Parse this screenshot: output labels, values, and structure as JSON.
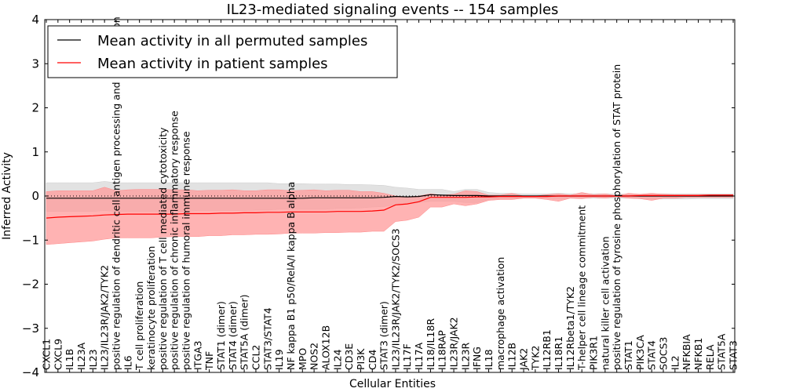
{
  "chart_data": {
    "type": "line",
    "title": "IL23-mediated signaling events -- 154 samples",
    "xlabel": "Cellular Entities",
    "ylabel": "Inferred Activity",
    "ylim": [
      -4,
      4
    ],
    "yticks": [
      -4,
      -3,
      -2,
      -1,
      0,
      1,
      2,
      3,
      4
    ],
    "ytick_labels": [
      "−4",
      "−3",
      "−2",
      "−1",
      "0",
      "1",
      "2",
      "3",
      "4"
    ],
    "grid": false,
    "legend": {
      "placement": "top-left",
      "entries": [
        {
          "label": "Mean activity in all permuted samples",
          "color": "#000000"
        },
        {
          "label": "Mean activity in patient samples",
          "color": "#ff0000"
        }
      ]
    },
    "categories": [
      "CXCL1",
      "CXCL9",
      "IL1B",
      "IL23A",
      "IL23",
      "IL23/IL23R/JAK2/TYK2",
      "positive regulation of dendritic cell antigen processing and presentation",
      "IL6",
      "T cell proliferation",
      "keratinocyte proliferation",
      "positive regulation of T cell mediated cytotoxicity",
      "positive regulation of chronic inflammatory response",
      "positive regulation of humoral immune response",
      "ITGA3",
      "TNF",
      "STAT1 (dimer)",
      "STAT4 (dimer)",
      "STAT5A (dimer)",
      "CCL2",
      "STAT3/STAT4",
      "IL19",
      "NF kappa B1 p50/RelA/I kappa B alpha",
      "MPO",
      "NOS2",
      "ALOX12B",
      "IL24",
      "CD3E",
      "PI3K",
      "CD4",
      "STAT3 (dimer)",
      "IL23/IL23R/JAK2/TYK2/SOCS3",
      "IL17F",
      "IL17A",
      "IL18/IL18R",
      "IL18RAP",
      "IL23R/JAK2",
      "IL23R",
      "IFNG",
      "IL18",
      "macrophage activation",
      "IL12B",
      "JAK2",
      "TYK2",
      "IL12RB1",
      "IL18R1",
      "IL12Rbeta1/TYK2",
      "T-helper cell lineage commitment",
      "PIK3R1",
      "natural killer cell activation",
      "positive regulation of tyrosine phosphorylation of STAT protein",
      "STAT1",
      "PIK3CA",
      "STAT4",
      "SOCS3",
      "IL2",
      "NFKBIA",
      "NFKB1",
      "RELA",
      "STAT5A",
      "STAT3"
    ],
    "series": [
      {
        "name": "Mean activity in all permuted samples",
        "color": "#000000",
        "values": [
          -0.05,
          -0.05,
          -0.05,
          -0.05,
          -0.05,
          -0.05,
          -0.05,
          -0.05,
          -0.05,
          -0.05,
          -0.05,
          -0.05,
          -0.05,
          -0.05,
          -0.05,
          -0.05,
          -0.05,
          -0.05,
          -0.05,
          -0.05,
          -0.05,
          -0.05,
          -0.05,
          -0.04,
          -0.04,
          -0.04,
          -0.04,
          -0.04,
          -0.04,
          -0.03,
          -0.01,
          -0.02,
          -0.01,
          0.03,
          0.02,
          0.01,
          0.01,
          0.01,
          0.0,
          0.0,
          0.0,
          0.0,
          0.0,
          0.0,
          0.0,
          0.0,
          0.0,
          0.0,
          0.0,
          0.0,
          0.0,
          0.0,
          0.0,
          0.0,
          0.0,
          0.0,
          0.0,
          0.0,
          0.0,
          0.0
        ],
        "band_upper": [
          0.3,
          0.3,
          0.3,
          0.3,
          0.3,
          0.33,
          0.3,
          0.3,
          0.3,
          0.3,
          0.3,
          0.3,
          0.3,
          0.3,
          0.3,
          0.3,
          0.3,
          0.3,
          0.3,
          0.3,
          0.28,
          0.28,
          0.28,
          0.27,
          0.27,
          0.27,
          0.26,
          0.26,
          0.25,
          0.24,
          0.2,
          0.18,
          0.15,
          0.15,
          0.15,
          0.1,
          0.15,
          0.15,
          0.08,
          0.06,
          0.06,
          0.05,
          0.05,
          0.05,
          0.06,
          0.05,
          0.05,
          0.05,
          0.05,
          0.05,
          0.04,
          0.04,
          0.05,
          0.05,
          0.05,
          0.05,
          0.05,
          0.05,
          0.05,
          0.05
        ],
        "band_lower": [
          -0.35,
          -0.35,
          -0.35,
          -0.35,
          -0.35,
          -0.33,
          -0.35,
          -0.35,
          -0.35,
          -0.35,
          -0.35,
          -0.35,
          -0.35,
          -0.33,
          -0.33,
          -0.33,
          -0.33,
          -0.33,
          -0.32,
          -0.32,
          -0.3,
          -0.3,
          -0.3,
          -0.3,
          -0.3,
          -0.28,
          -0.28,
          -0.27,
          -0.25,
          -0.24,
          -0.2,
          -0.18,
          -0.15,
          -0.12,
          -0.12,
          -0.12,
          -0.15,
          -0.15,
          -0.08,
          -0.06,
          -0.06,
          -0.05,
          -0.05,
          -0.05,
          -0.06,
          -0.05,
          -0.05,
          -0.05,
          -0.05,
          -0.05,
          -0.05,
          -0.06,
          -0.07,
          -0.07,
          -0.07,
          -0.07,
          -0.06,
          -0.06,
          -0.06,
          -0.06
        ]
      },
      {
        "name": "Mean activity in patient samples",
        "color": "#ff0000",
        "values": [
          -0.5,
          -0.48,
          -0.47,
          -0.46,
          -0.45,
          -0.43,
          -0.42,
          -0.41,
          -0.41,
          -0.41,
          -0.41,
          -0.41,
          -0.4,
          -0.4,
          -0.4,
          -0.39,
          -0.39,
          -0.38,
          -0.38,
          -0.37,
          -0.37,
          -0.36,
          -0.36,
          -0.36,
          -0.36,
          -0.35,
          -0.35,
          -0.35,
          -0.34,
          -0.32,
          -0.2,
          -0.18,
          -0.13,
          -0.03,
          -0.03,
          -0.03,
          -0.03,
          -0.02,
          -0.02,
          -0.01,
          -0.01,
          -0.01,
          -0.01,
          -0.01,
          0.0,
          0.0,
          0.0,
          0.0,
          0.0,
          0.0,
          0.0,
          0.01,
          0.01,
          0.01,
          0.01,
          0.01,
          0.01,
          0.02,
          0.02,
          0.02
        ],
        "band_upper": [
          0.1,
          0.12,
          0.12,
          0.12,
          0.12,
          0.2,
          0.12,
          0.14,
          0.15,
          0.15,
          0.15,
          0.14,
          0.14,
          0.12,
          0.13,
          0.13,
          0.14,
          0.12,
          0.12,
          0.14,
          0.14,
          0.12,
          0.13,
          0.14,
          0.12,
          0.13,
          0.13,
          0.1,
          0.1,
          0.06,
          0.0,
          -0.02,
          0.0,
          0.05,
          0.02,
          0.04,
          0.12,
          0.1,
          0.02,
          0.02,
          0.06,
          0.0,
          0.0,
          0.03,
          0.05,
          0.02,
          0.08,
          0.03,
          0.05,
          0.0,
          0.06,
          0.04,
          0.06,
          0.04,
          0.03,
          0.03,
          0.03,
          0.03,
          0.03,
          0.03
        ],
        "band_lower": [
          -1.1,
          -1.08,
          -1.06,
          -1.04,
          -1.02,
          -0.98,
          -0.95,
          -0.95,
          -0.95,
          -0.95,
          -0.93,
          -0.92,
          -0.92,
          -0.92,
          -0.9,
          -0.9,
          -0.88,
          -0.88,
          -0.87,
          -0.87,
          -0.86,
          -0.84,
          -0.84,
          -0.84,
          -0.83,
          -0.83,
          -0.82,
          -0.82,
          -0.8,
          -0.8,
          -0.58,
          -0.55,
          -0.48,
          -0.25,
          -0.25,
          -0.18,
          -0.22,
          -0.18,
          -0.1,
          -0.08,
          -0.08,
          -0.05,
          -0.05,
          -0.08,
          -0.12,
          -0.05,
          -0.06,
          -0.03,
          -0.05,
          -0.01,
          -0.05,
          -0.06,
          -0.1,
          -0.05,
          -0.05,
          -0.03,
          -0.03,
          -0.03,
          -0.03,
          -0.03
        ]
      }
    ],
    "reference_line": {
      "y": 0,
      "style": "dotted",
      "color": "#000000"
    },
    "band_colors": {
      "permuted": "#dddddd",
      "patient": "#ff9999"
    }
  }
}
